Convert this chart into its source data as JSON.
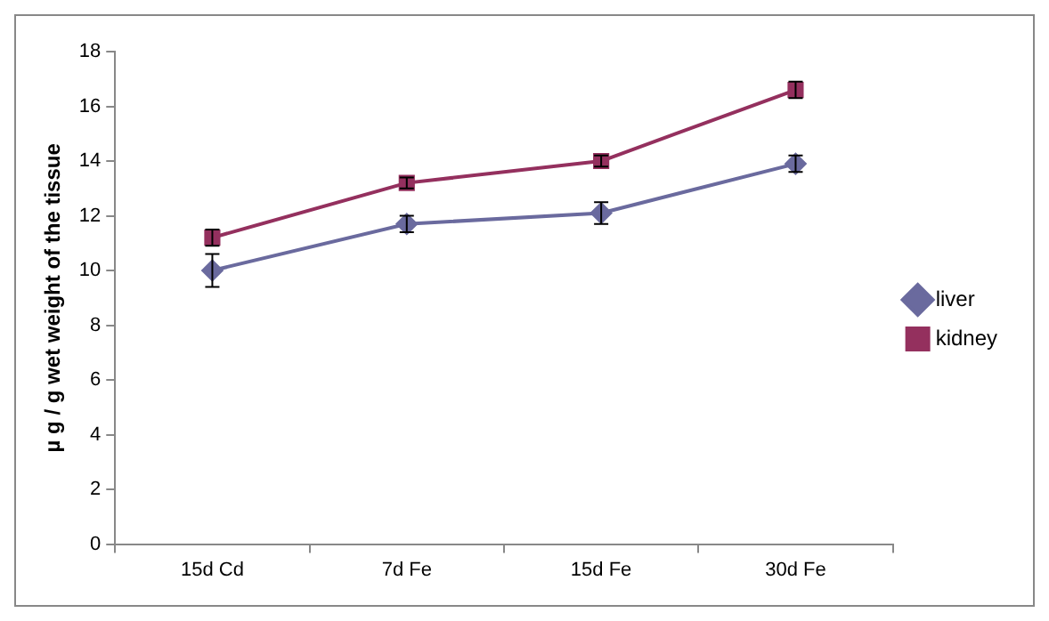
{
  "chart_data": {
    "type": "line",
    "ylabel": "µ g / g wet weight of the tissue",
    "categories": [
      "15d Cd",
      "7d Fe",
      "15d Fe",
      "30d Fe"
    ],
    "series": [
      {
        "name": "liver",
        "color": "#6a6a9e",
        "marker": "diamond",
        "values": [
          10.0,
          11.7,
          12.1,
          13.9
        ],
        "errors": [
          0.6,
          0.3,
          0.4,
          0.3
        ]
      },
      {
        "name": "kidney",
        "color": "#94305e",
        "marker": "square",
        "values": [
          11.2,
          13.2,
          14.0,
          16.6
        ],
        "errors": [
          0.3,
          0.2,
          0.2,
          0.3
        ]
      }
    ],
    "ylim": [
      0,
      18
    ],
    "yticks": [
      0,
      2,
      4,
      6,
      8,
      10,
      12,
      14,
      16,
      18
    ],
    "grid": false,
    "legend": "right",
    "line_style": "solid"
  }
}
